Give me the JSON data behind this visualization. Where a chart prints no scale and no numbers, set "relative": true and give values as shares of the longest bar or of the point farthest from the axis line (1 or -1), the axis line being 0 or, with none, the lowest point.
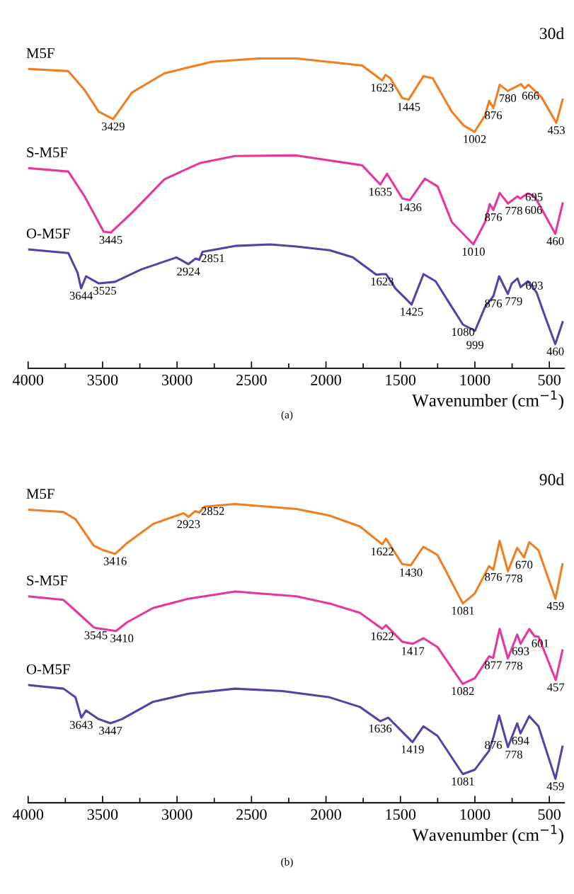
{
  "chart_data": [
    {
      "type": "line",
      "title": "30d",
      "xlabel": "Wavenumber (cm$^{−1}$)",
      "relative": true,
      "legend": false,
      "grid": false,
      "marker": "none",
      "line_style": "solid",
      "tick_labels": "x",
      "xlim": [
        4000,
        400
      ],
      "xticks": [
        4000,
        {
          "value": 3750,
          "label": null
        },
        3500,
        {
          "value": 3250,
          "label": null
        },
        3000,
        {
          "value": 2750,
          "label": null
        },
        2500,
        {
          "value": 2250,
          "label": null
        },
        2000,
        {
          "value": 1750,
          "label": null
        },
        1500,
        {
          "value": 1250,
          "label": null
        },
        1000,
        {
          "value": 750,
          "label": null
        },
        500
      ],
      "series": [
        {
          "name": "M5F",
          "color": "#f07d1f",
          "x": [
            4000,
            3730,
            3621,
            3526,
            3429,
            3303,
            3085,
            2767,
            2450,
            2198,
            1757,
            1623,
            1600,
            1568,
            1487,
            1445,
            1345,
            1283,
            1155,
            1074,
            1002,
            932,
            904,
            876,
            833,
            780,
            714,
            690,
            666,
            640,
            553,
            453,
            411
          ],
          "values": [
            0.966,
            0.959,
            0.898,
            0.828,
            0.804,
            0.89,
            0.952,
            0.989,
            1.0,
            1.0,
            0.977,
            0.929,
            0.947,
            0.936,
            0.872,
            0.867,
            0.943,
            0.936,
            0.828,
            0.783,
            0.763,
            0.816,
            0.863,
            0.84,
            0.915,
            0.895,
            0.911,
            0.917,
            0.903,
            0.915,
            0.875,
            0.792,
            0.867
          ]
        },
        {
          "name": "S-M5F",
          "color": "#e6359c",
          "x": [
            4000,
            3730,
            3621,
            3493,
            3445,
            3303,
            3085,
            2848,
            2611,
            2198,
            1757,
            1635,
            1590,
            1487,
            1436,
            1336,
            1250,
            1155,
            1010,
            932,
            900,
            876,
            833,
            778,
            714,
            695,
            648,
            606,
            572,
            460,
            411
          ],
          "values": [
            0.646,
            0.635,
            0.555,
            0.441,
            0.438,
            0.502,
            0.61,
            0.662,
            0.685,
            0.687,
            0.655,
            0.593,
            0.628,
            0.548,
            0.543,
            0.612,
            0.587,
            0.472,
            0.4,
            0.472,
            0.53,
            0.511,
            0.566,
            0.532,
            0.555,
            0.548,
            0.564,
            0.557,
            0.532,
            0.434,
            0.532
          ]
        },
        {
          "name": "O-M5F",
          "color": "#5a3fa8",
          "x": [
            4000,
            3730,
            3668,
            3644,
            3611,
            3525,
            3417,
            3241,
            3004,
            2924,
            2876,
            2851,
            2829,
            2611,
            2374,
            2198,
            1975,
            1819,
            1662,
            1623,
            1596,
            1534,
            1425,
            1345,
            1264,
            1155,
            1080,
            999,
            932,
            876,
            837,
            779,
            752,
            714,
            693,
            643,
            586,
            524,
            460,
            411
          ],
          "values": [
            0.384,
            0.372,
            0.308,
            0.258,
            0.297,
            0.274,
            0.279,
            0.319,
            0.358,
            0.336,
            0.354,
            0.35,
            0.376,
            0.395,
            0.4,
            0.393,
            0.381,
            0.358,
            0.302,
            0.304,
            0.304,
            0.258,
            0.206,
            0.304,
            0.281,
            0.198,
            0.141,
            0.121,
            0.198,
            0.233,
            0.297,
            0.24,
            0.274,
            0.29,
            0.262,
            0.281,
            0.245,
            0.161,
            0.078,
            0.149
          ]
        }
      ],
      "annotations": [
        {
          "text": "3429",
          "x": 3429,
          "y": 0.804
        },
        {
          "text": "1623",
          "x": 1623,
          "y": 0.929
        },
        {
          "text": "1445",
          "x": 1445,
          "y": 0.867
        },
        {
          "text": "1002",
          "x": 1002,
          "y": 0.763
        },
        {
          "text": "876",
          "x": 876,
          "y": 0.84
        },
        {
          "text": "780",
          "x": 780,
          "y": 0.895
        },
        {
          "text": "666",
          "x": 666,
          "y": 0.903
        },
        {
          "text": "453",
          "x": 453,
          "y": 0.792
        },
        {
          "text": "3445",
          "x": 3445,
          "y": 0.438
        },
        {
          "text": "1635",
          "x": 1635,
          "y": 0.593
        },
        {
          "text": "1436",
          "x": 1436,
          "y": 0.543
        },
        {
          "text": "1010",
          "x": 1010,
          "y": 0.4
        },
        {
          "text": "876",
          "x": 876,
          "y": 0.511
        },
        {
          "text": "778",
          "x": 778,
          "y": 0.532
        },
        {
          "text": "695",
          "x": 695,
          "y": 0.548
        },
        {
          "text": "606",
          "x": 606,
          "y": 0.557
        },
        {
          "text": "460",
          "x": 460,
          "y": 0.434
        },
        {
          "text": "3644",
          "x": 3644,
          "y": 0.258
        },
        {
          "text": "3525",
          "x": 3525,
          "y": 0.274
        },
        {
          "text": "2924",
          "x": 2924,
          "y": 0.336
        },
        {
          "text": "2851",
          "x": 2851,
          "y": 0.35
        },
        {
          "text": "1623",
          "x": 1623,
          "y": 0.304
        },
        {
          "text": "1425",
          "x": 1425,
          "y": 0.206
        },
        {
          "text": "1080",
          "x": 1080,
          "y": 0.141
        },
        {
          "text": "999",
          "x": 999,
          "y": 0.121
        },
        {
          "text": "876",
          "x": 876,
          "y": 0.233
        },
        {
          "text": "779",
          "x": 779,
          "y": 0.24
        },
        {
          "text": "693",
          "x": 693,
          "y": 0.262
        },
        {
          "text": "460",
          "x": 460,
          "y": 0.078
        },
        "(a)"
      ]
    },
    {
      "type": "line",
      "title": "90d",
      "xlabel": "Wavenumber (cm$^{−1}$)",
      "relative": true,
      "legend": false,
      "grid": false,
      "marker": "none",
      "line_style": "solid",
      "tick_labels": "x",
      "xlim": [
        4000,
        400
      ],
      "xticks": [
        4000,
        {
          "value": 3750,
          "label": null
        },
        3500,
        {
          "value": 3250,
          "label": null
        },
        3000,
        {
          "value": 2750,
          "label": null
        },
        2500,
        {
          "value": 2250,
          "label": null
        },
        2000,
        {
          "value": 1750,
          "label": null
        },
        1500,
        {
          "value": 1250,
          "label": null
        },
        1000,
        {
          "value": 750,
          "label": null
        },
        500
      ],
      "series": [
        {
          "name": "M5F",
          "color": "#f07d1f",
          "x": [
            4000,
            3763,
            3682,
            3559,
            3493,
            3416,
            3336,
            3161,
            2957,
            2923,
            2877,
            2852,
            2815,
            2611,
            2199,
            1976,
            1773,
            1622,
            1597,
            1488,
            1430,
            1346,
            1251,
            1081,
            1000,
            905,
            876,
            834,
            778,
            716,
            670,
            635,
            573,
            459,
            412
          ],
          "values": [
            0.981,
            0.973,
            0.949,
            0.86,
            0.845,
            0.833,
            0.869,
            0.933,
            0.969,
            0.957,
            0.976,
            0.971,
            0.991,
            1.0,
            0.983,
            0.961,
            0.925,
            0.865,
            0.884,
            0.799,
            0.795,
            0.857,
            0.829,
            0.667,
            0.701,
            0.792,
            0.78,
            0.877,
            0.775,
            0.853,
            0.821,
            0.872,
            0.845,
            0.683,
            0.798
          ]
        },
        {
          "name": "S-M5F",
          "color": "#e6359c",
          "x": [
            4000,
            3763,
            3682,
            3559,
            3545,
            3410,
            3336,
            3161,
            2924,
            2611,
            2199,
            1976,
            1773,
            1622,
            1597,
            1488,
            1417,
            1346,
            1251,
            1082,
            1000,
            905,
            877,
            834,
            778,
            716,
            693,
            635,
            601,
            573,
            457,
            412
          ],
          "values": [
            0.691,
            0.679,
            0.643,
            0.587,
            0.585,
            0.575,
            0.604,
            0.652,
            0.683,
            0.707,
            0.691,
            0.667,
            0.636,
            0.582,
            0.594,
            0.539,
            0.532,
            0.551,
            0.521,
            0.398,
            0.417,
            0.49,
            0.485,
            0.582,
            0.483,
            0.563,
            0.532,
            0.582,
            0.558,
            0.556,
            0.411,
            0.51
          ]
        },
        {
          "name": "O-M5F",
          "color": "#5a3fa8",
          "x": [
            4000,
            3763,
            3682,
            3643,
            3611,
            3526,
            3447,
            3370,
            3161,
            2924,
            2611,
            2294,
            1976,
            1773,
            1636,
            1582,
            1419,
            1346,
            1251,
            1081,
            1000,
            905,
            876,
            837,
            778,
            716,
            694,
            635,
            573,
            459,
            412
          ],
          "values": [
            0.394,
            0.382,
            0.353,
            0.285,
            0.309,
            0.28,
            0.266,
            0.28,
            0.338,
            0.365,
            0.382,
            0.374,
            0.353,
            0.321,
            0.273,
            0.285,
            0.203,
            0.256,
            0.224,
            0.096,
            0.111,
            0.174,
            0.218,
            0.292,
            0.186,
            0.266,
            0.232,
            0.29,
            0.256,
            0.08,
            0.188
          ]
        }
      ],
      "annotations": [
        {
          "text": "3416",
          "x": 3416,
          "y": 0.833
        },
        {
          "text": "2923",
          "x": 2923,
          "y": 0.957
        },
        {
          "text": "2852",
          "x": 2852,
          "y": 0.971
        },
        {
          "text": "1622",
          "x": 1622,
          "y": 0.865
        },
        {
          "text": "1430",
          "x": 1430,
          "y": 0.795
        },
        {
          "text": "1081",
          "x": 1081,
          "y": 0.667
        },
        {
          "text": "876",
          "x": 876,
          "y": 0.78
        },
        {
          "text": "778",
          "x": 778,
          "y": 0.775
        },
        {
          "text": "670",
          "x": 670,
          "y": 0.821
        },
        {
          "text": "459",
          "x": 459,
          "y": 0.683
        },
        {
          "text": "3545",
          "x": 3545,
          "y": 0.585
        },
        {
          "text": "3410",
          "x": 3410,
          "y": 0.575
        },
        {
          "text": "1622",
          "x": 1622,
          "y": 0.582
        },
        {
          "text": "1417",
          "x": 1417,
          "y": 0.532
        },
        {
          "text": "1082",
          "x": 1082,
          "y": 0.398
        },
        {
          "text": "877",
          "x": 877,
          "y": 0.485
        },
        {
          "text": "778",
          "x": 778,
          "y": 0.483
        },
        {
          "text": "693",
          "x": 693,
          "y": 0.532
        },
        {
          "text": "601",
          "x": 601,
          "y": 0.558
        },
        {
          "text": "457",
          "x": 457,
          "y": 0.411
        },
        {
          "text": "3643",
          "x": 3643,
          "y": 0.285
        },
        {
          "text": "3447",
          "x": 3447,
          "y": 0.266
        },
        {
          "text": "1636",
          "x": 1636,
          "y": 0.273
        },
        {
          "text": "1419",
          "x": 1419,
          "y": 0.203
        },
        {
          "text": "1081",
          "x": 1081,
          "y": 0.096
        },
        {
          "text": "876",
          "x": 876,
          "y": 0.218
        },
        {
          "text": "778",
          "x": 778,
          "y": 0.186
        },
        {
          "text": "694",
          "x": 694,
          "y": 0.232
        },
        {
          "text": "459",
          "x": 459,
          "y": 0.08
        },
        "(b)"
      ]
    }
  ]
}
